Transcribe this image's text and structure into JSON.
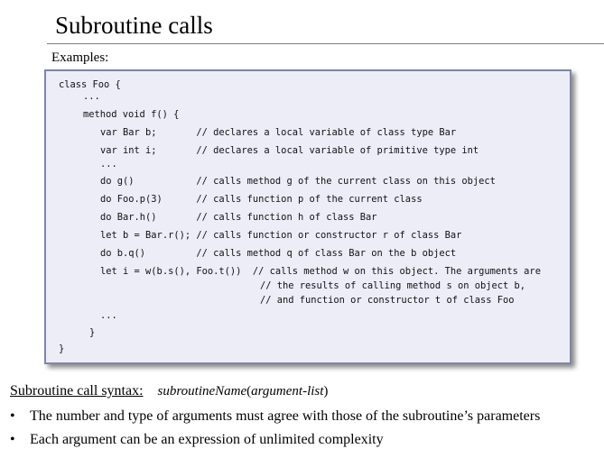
{
  "title": "Subroutine calls",
  "examples_label": "Examples:",
  "code_lines": [
    "class Foo {",
    "...",
    "method void f() {",
    "var Bar b;       // declares a local variable of class type Bar",
    "var int i;       // declares a local variable of primitive type int",
    "...",
    "do g()           // calls method g of the current class on this object",
    "do Foo.p(3)      // calls function p of the current class",
    "do Bar.h()       // calls function h of class Bar",
    "let b = Bar.r(); // calls function or constructor r of class Bar",
    "do b.q()         // calls method q of class Bar on the b object",
    "let i = w(b.s(), Foo.t())  // calls method w on this object. The arguments are",
    "// the results of calling method s on object b,",
    "// and function or constructor t of class Foo",
    "...",
    "}",
    "}"
  ],
  "syntax": {
    "label": "Subroutine call syntax:",
    "form_name": "subroutineName",
    "form_open": "(",
    "form_args": "argument-list",
    "form_close": ")"
  },
  "bullets": [
    "The number and type of arguments must agree with those of the subroutine’s parameters",
    "Each argument can be an expression of unlimited complexity"
  ],
  "bullet_glyph": "•"
}
